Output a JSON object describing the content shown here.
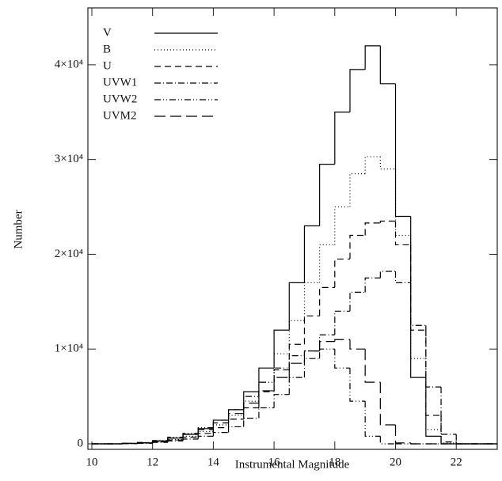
{
  "chart_data": {
    "type": "step",
    "x_label": "Instrumental Magnitude",
    "y_label": "Number",
    "x": [
      10,
      10.5,
      11,
      11.5,
      12,
      12.5,
      13,
      13.5,
      14,
      14.5,
      15,
      15.5,
      16,
      16.5,
      17,
      17.5,
      18,
      18.5,
      19,
      19.5,
      20,
      20.5,
      21,
      21.5,
      22,
      22.5,
      23
    ],
    "bin_width": 0.5,
    "series": [
      {
        "name": "V",
        "color": "#000000",
        "dash": "none",
        "values": [
          0,
          0,
          50,
          100,
          300,
          600,
          1000,
          1600,
          2500,
          3600,
          5500,
          8000,
          12000,
          17000,
          23000,
          29500,
          35000,
          39500,
          42000,
          38000,
          24000,
          7000,
          800,
          0,
          0,
          0,
          0
        ]
      },
      {
        "name": "B",
        "color": "#000000",
        "dash": "1,3",
        "values": [
          0,
          0,
          30,
          80,
          200,
          450,
          800,
          1300,
          2000,
          3000,
          4500,
          6500,
          9500,
          13000,
          17000,
          21000,
          25000,
          28500,
          30300,
          29000,
          22000,
          9000,
          1500,
          100,
          0,
          0,
          0
        ]
      },
      {
        "name": "U",
        "color": "#000000",
        "dash": "8,5",
        "values": [
          0,
          0,
          30,
          80,
          200,
          400,
          700,
          1100,
          1700,
          2600,
          3800,
          5500,
          7800,
          10500,
          13500,
          16500,
          19500,
          22000,
          23300,
          23500,
          21000,
          12000,
          3000,
          200,
          0,
          0,
          0
        ]
      },
      {
        "name": "UVW1",
        "color": "#000000",
        "dash": "8,3,1,3",
        "values": [
          0,
          0,
          20,
          50,
          150,
          300,
          500,
          800,
          1200,
          1800,
          2700,
          3800,
          5200,
          7000,
          9000,
          11500,
          14000,
          16000,
          17500,
          18200,
          17000,
          12500,
          6000,
          1000,
          0,
          0,
          0
        ]
      },
      {
        "name": "UVW2",
        "color": "#000000",
        "dash": "8,3,1,3,1,3",
        "values": [
          0,
          0,
          50,
          150,
          350,
          700,
          1100,
          1700,
          2500,
          3600,
          5000,
          6500,
          8000,
          9300,
          9800,
          10000,
          8000,
          4500,
          800,
          0,
          0,
          0,
          0,
          0,
          0,
          0,
          0
        ]
      },
      {
        "name": "UVM2",
        "color": "#000000",
        "dash": "14,6",
        "values": [
          0,
          0,
          40,
          120,
          300,
          600,
          1000,
          1500,
          2200,
          3200,
          4300,
          5600,
          7000,
          8500,
          9800,
          10800,
          11000,
          10000,
          6500,
          2000,
          100,
          0,
          0,
          0,
          0,
          0,
          0
        ]
      }
    ],
    "xlim": [
      9.87,
      23.35
    ],
    "ylim": [
      -585,
      46000
    ],
    "xticks": [
      10,
      12,
      14,
      16,
      18,
      20,
      22
    ],
    "yticks": [
      0,
      {
        "value": 10000,
        "label": "1×10⁴"
      },
      {
        "value": 20000,
        "label": "2×10⁴"
      },
      {
        "value": 30000,
        "label": "3×10⁴"
      },
      {
        "value": 40000,
        "label": "4×10⁴"
      }
    ],
    "legend": "upper left"
  }
}
